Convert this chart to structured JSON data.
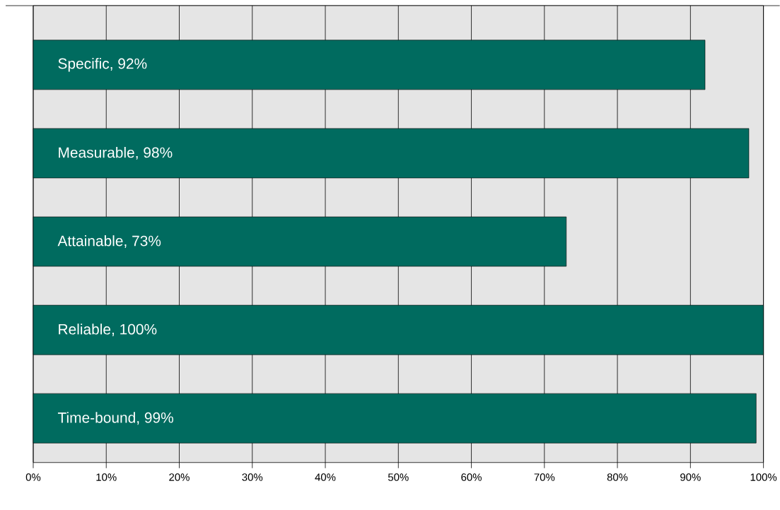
{
  "chart_data": {
    "type": "bar",
    "orientation": "horizontal",
    "categories": [
      null,
      null,
      null,
      null,
      null
    ],
    "values": [
      92,
      98,
      73,
      100,
      99
    ],
    "value_labels": [
      "Specific, 92%",
      "Measurable, 98%",
      "Attainable, 73%",
      "Reliable, 100%",
      "Time-bound, 99%"
    ],
    "color": "#006b5f",
    "xlim": [
      0,
      100
    ],
    "xticks": [
      {
        "value": 0,
        "label": "0%"
      },
      {
        "value": 10,
        "label": "10%"
      },
      {
        "value": 20,
        "label": "20%"
      },
      {
        "value": 30,
        "label": "30%"
      },
      {
        "value": 40,
        "label": "40%"
      },
      {
        "value": 50,
        "label": "50%"
      },
      {
        "value": 60,
        "label": "60%"
      },
      {
        "value": 70,
        "label": "70%"
      },
      {
        "value": 80,
        "label": "80%"
      },
      {
        "value": 90,
        "label": "90%"
      },
      {
        "value": 100,
        "label": "100%"
      }
    ],
    "grid": "x"
  }
}
